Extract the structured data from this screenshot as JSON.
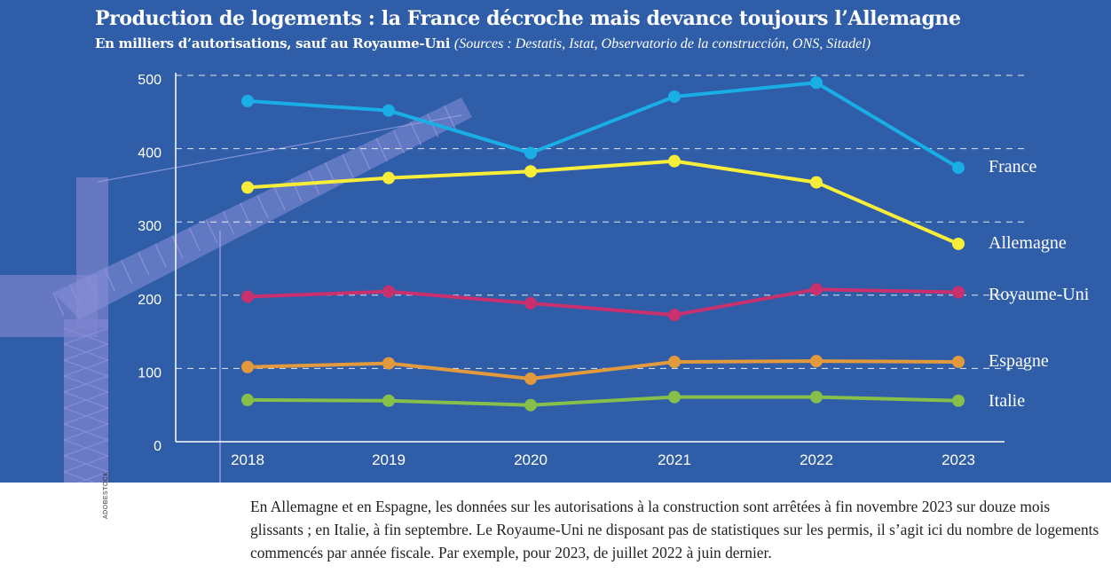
{
  "title": "Production de logements : la France décroche mais devance toujours l’Allemagne",
  "subtitle_main": "En milliers d’autorisations, sauf au Royaume-Uni",
  "subtitle_sources": "(Sources : Destatis, Istat, Observatorio de la construcción, ONS, Sitadel)",
  "note": "En Allemagne et en Espagne, les données sur les autorisations à la construction sont arrêtées à fin novembre 2023 sur douze mois glissants ; en Italie, à fin septembre. Le Royaume-Uni ne disposant pas de statistiques sur les permis, il s’agit ici du nombre de logements commencés par année fiscale. Par exemple, pour 2023, de juillet 2022 à juin dernier.",
  "photo_credit": "ADOBESTOCK",
  "colors": {
    "background": "#2f5da8",
    "France": "#1aaee6",
    "Allemagne": "#f8ee3a",
    "Royaume-Uni": "#c8306e",
    "Espagne": "#e39a3c",
    "Italie": "#86c04a"
  },
  "chart_data": {
    "type": "line",
    "title": "Production de logements : la France décroche mais devance toujours l’Allemagne",
    "ylabel": "",
    "xlabel": "",
    "categories": [
      "2018",
      "2019",
      "2020",
      "2021",
      "2022",
      "2023"
    ],
    "yticks": [
      "0",
      "100",
      "200",
      "300",
      "400",
      "500"
    ],
    "ylim": [
      0,
      500
    ],
    "grid": "horizontal dashed",
    "legend": "labels at line ends (right)",
    "series": [
      {
        "name": "France",
        "values": [
          465,
          452,
          394,
          471,
          490,
          374
        ]
      },
      {
        "name": "Allemagne",
        "values": [
          347,
          360,
          369,
          383,
          354,
          270
        ]
      },
      {
        "name": "Royaume-Uni",
        "values": [
          198,
          205,
          189,
          173,
          208,
          204
        ]
      },
      {
        "name": "Espagne",
        "values": [
          102,
          107,
          86,
          109,
          110,
          109
        ]
      },
      {
        "name": "Italie",
        "values": [
          57,
          56,
          50,
          61,
          61,
          56
        ]
      }
    ]
  }
}
